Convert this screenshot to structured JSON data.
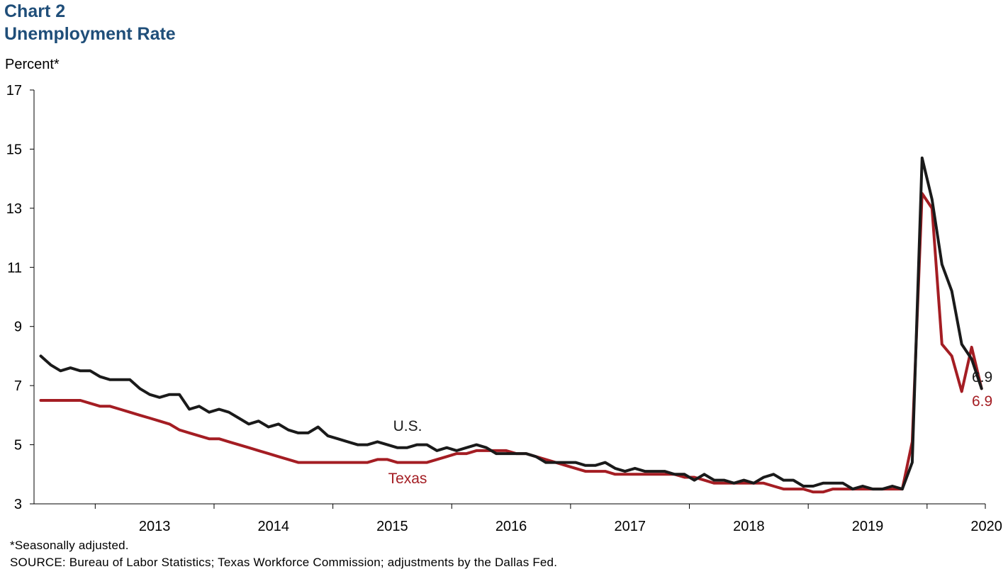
{
  "title_line1": "Chart 2",
  "title_line2": "Unemployment Rate",
  "footnote": "*Seasonally adjusted.",
  "source": "SOURCE:  Bureau of Labor Statistics; Texas Workforce Commission;  adjustments  by the Dallas Fed.",
  "colors": {
    "title": "#1f4e79",
    "us": "#1a1a1a",
    "texas": "#a41d23"
  },
  "chart_data": {
    "type": "line",
    "ylabel": "Percent*",
    "ylim": [
      3,
      17
    ],
    "yticks": [
      3,
      5,
      7,
      9,
      11,
      13,
      15,
      17
    ],
    "x_start": "2012-07",
    "x_end": "2020-10",
    "x_tick_labels": [
      "2013",
      "2014",
      "2015",
      "2016",
      "2017",
      "2018",
      "2019",
      "2020"
    ],
    "series": [
      {
        "name": "U.S.",
        "label": "U.S.",
        "end_label": "6.9",
        "values": [
          8.0,
          7.7,
          7.5,
          7.6,
          7.5,
          7.5,
          7.3,
          7.2,
          7.2,
          7.2,
          6.9,
          6.7,
          6.6,
          6.7,
          6.7,
          6.2,
          6.3,
          6.1,
          6.2,
          6.1,
          5.9,
          5.7,
          5.8,
          5.6,
          5.7,
          5.5,
          5.4,
          5.4,
          5.6,
          5.3,
          5.2,
          5.1,
          5.0,
          5.0,
          5.1,
          5.0,
          4.9,
          4.9,
          5.0,
          5.0,
          4.8,
          4.9,
          4.8,
          4.9,
          5.0,
          4.9,
          4.7,
          4.7,
          4.7,
          4.7,
          4.6,
          4.4,
          4.4,
          4.4,
          4.4,
          4.3,
          4.3,
          4.4,
          4.2,
          4.1,
          4.2,
          4.1,
          4.1,
          4.1,
          4.0,
          4.0,
          3.8,
          4.0,
          3.8,
          3.8,
          3.7,
          3.8,
          3.7,
          3.9,
          4.0,
          3.8,
          3.8,
          3.6,
          3.6,
          3.7,
          3.7,
          3.7,
          3.5,
          3.6,
          3.5,
          3.5,
          3.6,
          3.5,
          4.4,
          14.7,
          13.3,
          11.1,
          10.2,
          8.4,
          7.9,
          6.9
        ]
      },
      {
        "name": "Texas",
        "label": "Texas",
        "end_label": "6.9",
        "values": [
          6.5,
          6.5,
          6.5,
          6.5,
          6.5,
          6.4,
          6.3,
          6.3,
          6.2,
          6.1,
          6.0,
          5.9,
          5.8,
          5.7,
          5.5,
          5.4,
          5.3,
          5.2,
          5.2,
          5.1,
          5.0,
          4.9,
          4.8,
          4.7,
          4.6,
          4.5,
          4.4,
          4.4,
          4.4,
          4.4,
          4.4,
          4.4,
          4.4,
          4.4,
          4.5,
          4.5,
          4.4,
          4.4,
          4.4,
          4.4,
          4.5,
          4.6,
          4.7,
          4.7,
          4.8,
          4.8,
          4.8,
          4.8,
          4.7,
          4.7,
          4.6,
          4.5,
          4.4,
          4.3,
          4.2,
          4.1,
          4.1,
          4.1,
          4.0,
          4.0,
          4.0,
          4.0,
          4.0,
          4.0,
          4.0,
          3.9,
          3.9,
          3.8,
          3.7,
          3.7,
          3.7,
          3.7,
          3.7,
          3.7,
          3.6,
          3.5,
          3.5,
          3.5,
          3.4,
          3.4,
          3.5,
          3.5,
          3.5,
          3.5,
          3.5,
          3.5,
          3.5,
          3.5,
          5.1,
          13.5,
          13.0,
          8.4,
          8.0,
          6.8,
          8.3,
          6.9
        ]
      }
    ]
  }
}
